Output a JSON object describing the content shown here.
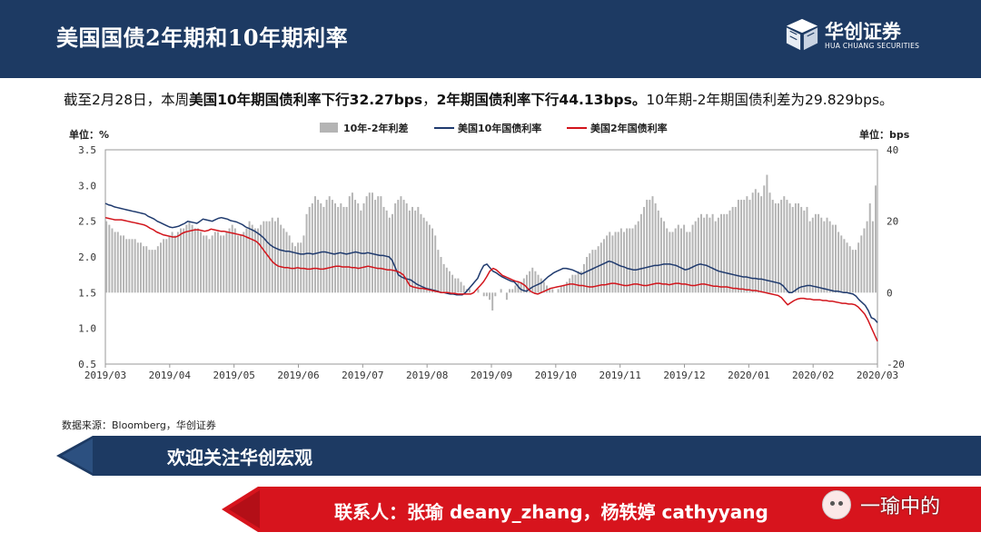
{
  "header": {
    "title": "美国国债2年期和10年期利率"
  },
  "logo": {
    "name": "华创证券",
    "sub": "HUA CHUANG SECURITIES"
  },
  "summary": {
    "p1": "截至2月28日，本周",
    "p2": "美国10年期国债利率下行32.27bps",
    "p3": "，",
    "p4": "2年期国债利率下行44.13bps。",
    "p5": "10年期-2年期国债利差为29.829bps。"
  },
  "source": "数据来源：Bloomberg，华创证券",
  "banner1": {
    "text": "欢迎关注华创宏观"
  },
  "banner2": {
    "text": "联系人：张瑜 deany_zhang，杨轶婷 cathyyang"
  },
  "watermark": {
    "text": "一瑜中的"
  },
  "colors": {
    "header": "#1d3a63",
    "red": "#c8102e",
    "bar": "#b4b4b4",
    "line10y": "#1f3a6e",
    "line2y": "#d2141b"
  },
  "chart_data": {
    "type": "bar+line",
    "ylabel_left": "单位：%",
    "ylabel_right": "单位：bps",
    "ylim_left": [
      0.5,
      3.5
    ],
    "yticks_left": [
      "3.5",
      "3.0",
      "2.5",
      "2.0",
      "1.5",
      "1.0",
      "0.5"
    ],
    "ylim_right": [
      -20,
      40
    ],
    "yticks_right": [
      "40",
      "20",
      "0",
      "-20"
    ],
    "x_ticks": [
      "2019/03",
      "2019/04",
      "2019/05",
      "2019/06",
      "2019/07",
      "2019/08",
      "2019/09",
      "2019/10",
      "2019/11",
      "2019/12",
      "2020/01",
      "2020/02",
      "2020/03"
    ],
    "legend_position": "top",
    "legend": [
      "10年-2年利差",
      "美国10年国债利率",
      "美国2年国债利率"
    ],
    "series": [
      {
        "name": "10年-2年利差",
        "kind": "bar",
        "axis": "right",
        "values": [
          20,
          19,
          18,
          17,
          17,
          16,
          16,
          15,
          15,
          15,
          15,
          14,
          14,
          13,
          13,
          12,
          12,
          12,
          13,
          14,
          15,
          15,
          16,
          17,
          16,
          17,
          18,
          18,
          19,
          20,
          19,
          18,
          18,
          17,
          16,
          16,
          15,
          16,
          17,
          17,
          16,
          16,
          17,
          18,
          19,
          18,
          16,
          16,
          17,
          18,
          20,
          19,
          18,
          18,
          19,
          20,
          20,
          20,
          21,
          20,
          21,
          19,
          18,
          17,
          16,
          14,
          13,
          14,
          14,
          16,
          22,
          24,
          25,
          27,
          26,
          25,
          24,
          26,
          27,
          26,
          25,
          24,
          25,
          24,
          24,
          27,
          28,
          26,
          25,
          23,
          25,
          27,
          28,
          28,
          26,
          27,
          27,
          24,
          23,
          21,
          22,
          25,
          26,
          27,
          26,
          25,
          23,
          24,
          23,
          24,
          22,
          21,
          20,
          19,
          18,
          16,
          12,
          10,
          8,
          7,
          6,
          5,
          4,
          4,
          3,
          2,
          1,
          1,
          0,
          0,
          1,
          0,
          -1,
          -1,
          -2,
          -5,
          -1,
          0,
          1,
          0,
          -2,
          1,
          1,
          2,
          3,
          3,
          4,
          5,
          6,
          7,
          6,
          5,
          4,
          3,
          2,
          1,
          1,
          0,
          1,
          2,
          2,
          3,
          4,
          5,
          5,
          6,
          6,
          8,
          10,
          11,
          12,
          12,
          13,
          14,
          15,
          16,
          17,
          16,
          17,
          17,
          18,
          17,
          18,
          18,
          18,
          19,
          20,
          22,
          24,
          26,
          26,
          27,
          25,
          23,
          21,
          20,
          18,
          17,
          17,
          18,
          19,
          18,
          19,
          17,
          17,
          19,
          20,
          21,
          22,
          21,
          22,
          21,
          22,
          20,
          21,
          22,
          22,
          22,
          23,
          24,
          24,
          26,
          26,
          26,
          27,
          26,
          28,
          29,
          28,
          27,
          30,
          33,
          28,
          26,
          25,
          25,
          26,
          27,
          26,
          25,
          24,
          25,
          25,
          24,
          23,
          24,
          20,
          21,
          22,
          22,
          21,
          20,
          21,
          20,
          19,
          19,
          17,
          16,
          15,
          14,
          13,
          12,
          12,
          14,
          16,
          18,
          20,
          25,
          20,
          30
        ]
      },
      {
        "name": "美国10年国债利率",
        "kind": "line",
        "axis": "left",
        "values": [
          2.75,
          2.73,
          2.72,
          2.7,
          2.69,
          2.68,
          2.67,
          2.66,
          2.65,
          2.64,
          2.63,
          2.62,
          2.61,
          2.6,
          2.57,
          2.55,
          2.53,
          2.5,
          2.48,
          2.46,
          2.44,
          2.42,
          2.41,
          2.42,
          2.43,
          2.45,
          2.47,
          2.5,
          2.49,
          2.48,
          2.47,
          2.5,
          2.53,
          2.52,
          2.51,
          2.5,
          2.52,
          2.54,
          2.55,
          2.54,
          2.53,
          2.51,
          2.5,
          2.49,
          2.47,
          2.45,
          2.42,
          2.4,
          2.38,
          2.36,
          2.33,
          2.3,
          2.26,
          2.21,
          2.17,
          2.14,
          2.12,
          2.1,
          2.09,
          2.08,
          2.08,
          2.07,
          2.06,
          2.05,
          2.04,
          2.04,
          2.05,
          2.05,
          2.04,
          2.05,
          2.06,
          2.07,
          2.07,
          2.06,
          2.05,
          2.04,
          2.05,
          2.06,
          2.05,
          2.04,
          2.05,
          2.06,
          2.07,
          2.06,
          2.05,
          2.05,
          2.06,
          2.05,
          2.04,
          2.03,
          2.02,
          2.02,
          2.01,
          2.0,
          1.95,
          1.85,
          1.75,
          1.72,
          1.7,
          1.69,
          1.68,
          1.65,
          1.62,
          1.6,
          1.58,
          1.56,
          1.55,
          1.54,
          1.53,
          1.52,
          1.5,
          1.5,
          1.49,
          1.48,
          1.48,
          1.47,
          1.47,
          1.47,
          1.5,
          1.55,
          1.6,
          1.65,
          1.7,
          1.8,
          1.88,
          1.9,
          1.85,
          1.8,
          1.78,
          1.75,
          1.72,
          1.7,
          1.68,
          1.66,
          1.65,
          1.6,
          1.55,
          1.53,
          1.52,
          1.55,
          1.58,
          1.6,
          1.62,
          1.64,
          1.68,
          1.72,
          1.75,
          1.78,
          1.8,
          1.82,
          1.84,
          1.84,
          1.83,
          1.82,
          1.8,
          1.78,
          1.76,
          1.78,
          1.8,
          1.82,
          1.84,
          1.86,
          1.88,
          1.9,
          1.92,
          1.94,
          1.93,
          1.91,
          1.89,
          1.87,
          1.86,
          1.84,
          1.83,
          1.82,
          1.82,
          1.83,
          1.84,
          1.85,
          1.86,
          1.87,
          1.88,
          1.88,
          1.89,
          1.9,
          1.9,
          1.9,
          1.89,
          1.88,
          1.86,
          1.84,
          1.82,
          1.83,
          1.85,
          1.87,
          1.89,
          1.9,
          1.89,
          1.88,
          1.86,
          1.84,
          1.82,
          1.8,
          1.79,
          1.78,
          1.77,
          1.76,
          1.75,
          1.74,
          1.73,
          1.72,
          1.72,
          1.71,
          1.7,
          1.7,
          1.69,
          1.69,
          1.68,
          1.67,
          1.66,
          1.65,
          1.64,
          1.63,
          1.6,
          1.55,
          1.5,
          1.5,
          1.53,
          1.56,
          1.58,
          1.59,
          1.6,
          1.6,
          1.59,
          1.58,
          1.57,
          1.56,
          1.55,
          1.54,
          1.53,
          1.52,
          1.52,
          1.51,
          1.5,
          1.5,
          1.49,
          1.48,
          1.45,
          1.4,
          1.36,
          1.32,
          1.25,
          1.15,
          1.13,
          1.08
        ]
      },
      {
        "name": "美国2年国债利率",
        "kind": "line",
        "axis": "left",
        "values": [
          2.55,
          2.54,
          2.53,
          2.52,
          2.52,
          2.52,
          2.51,
          2.5,
          2.49,
          2.48,
          2.47,
          2.46,
          2.45,
          2.43,
          2.4,
          2.38,
          2.35,
          2.33,
          2.31,
          2.3,
          2.29,
          2.28,
          2.28,
          2.3,
          2.33,
          2.35,
          2.36,
          2.37,
          2.38,
          2.38,
          2.37,
          2.36,
          2.37,
          2.39,
          2.38,
          2.37,
          2.36,
          2.36,
          2.35,
          2.34,
          2.33,
          2.32,
          2.31,
          2.3,
          2.28,
          2.26,
          2.24,
          2.22,
          2.18,
          2.12,
          2.06,
          2.0,
          1.94,
          1.9,
          1.87,
          1.86,
          1.85,
          1.85,
          1.84,
          1.84,
          1.85,
          1.84,
          1.84,
          1.83,
          1.83,
          1.84,
          1.84,
          1.83,
          1.83,
          1.84,
          1.85,
          1.86,
          1.87,
          1.87,
          1.86,
          1.86,
          1.86,
          1.85,
          1.85,
          1.84,
          1.85,
          1.86,
          1.87,
          1.86,
          1.85,
          1.84,
          1.84,
          1.83,
          1.82,
          1.82,
          1.81,
          1.8,
          1.78,
          1.75,
          1.68,
          1.6,
          1.58,
          1.57,
          1.56,
          1.56,
          1.55,
          1.54,
          1.53,
          1.52,
          1.51,
          1.5,
          1.5,
          1.5,
          1.49,
          1.49,
          1.48,
          1.48,
          1.48,
          1.48,
          1.48,
          1.5,
          1.55,
          1.6,
          1.65,
          1.72,
          1.8,
          1.84,
          1.82,
          1.78,
          1.74,
          1.72,
          1.7,
          1.68,
          1.66,
          1.65,
          1.63,
          1.6,
          1.55,
          1.51,
          1.49,
          1.48,
          1.5,
          1.52,
          1.54,
          1.56,
          1.57,
          1.58,
          1.59,
          1.6,
          1.61,
          1.62,
          1.62,
          1.61,
          1.6,
          1.6,
          1.59,
          1.58,
          1.58,
          1.59,
          1.6,
          1.61,
          1.61,
          1.62,
          1.63,
          1.63,
          1.62,
          1.61,
          1.6,
          1.6,
          1.61,
          1.62,
          1.62,
          1.61,
          1.6,
          1.6,
          1.61,
          1.62,
          1.63,
          1.63,
          1.62,
          1.62,
          1.61,
          1.62,
          1.63,
          1.63,
          1.62,
          1.62,
          1.61,
          1.6,
          1.6,
          1.61,
          1.62,
          1.62,
          1.61,
          1.6,
          1.59,
          1.59,
          1.58,
          1.58,
          1.58,
          1.57,
          1.56,
          1.56,
          1.55,
          1.55,
          1.54,
          1.54,
          1.53,
          1.53,
          1.52,
          1.51,
          1.5,
          1.49,
          1.48,
          1.47,
          1.46,
          1.43,
          1.38,
          1.33,
          1.36,
          1.39,
          1.41,
          1.42,
          1.42,
          1.41,
          1.41,
          1.4,
          1.4,
          1.4,
          1.39,
          1.39,
          1.38,
          1.38,
          1.37,
          1.36,
          1.35,
          1.35,
          1.34,
          1.34,
          1.33,
          1.3,
          1.25,
          1.2,
          1.12,
          1.02,
          0.92,
          0.82
        ]
      }
    ]
  }
}
